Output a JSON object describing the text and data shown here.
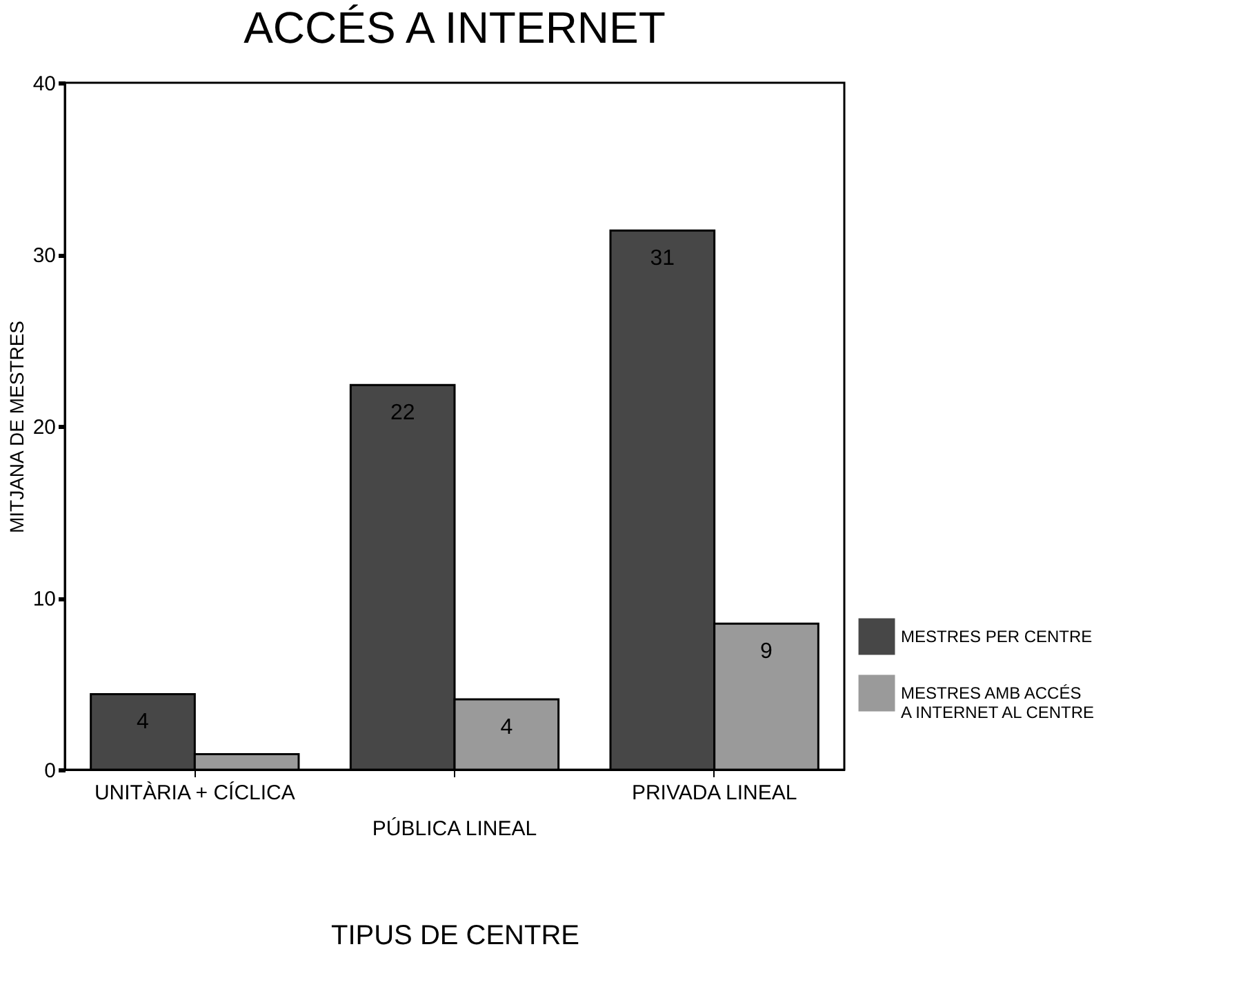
{
  "chart_data": {
    "type": "bar",
    "title": "ACCÉS A INTERNET",
    "xlabel": "TIPUS DE CENTRE",
    "ylabel": "MITJANA DE MESTRES",
    "categories": [
      "UNITÀRIA + CÍCLICA",
      "PÚBLICA LINEAL",
      "PRIVADA LINEAL"
    ],
    "series": [
      {
        "name": "MESTRES PER CENTRE",
        "color": "#474747",
        "values": [
          4.4,
          22.4,
          31.4
        ],
        "value_labels": [
          "4",
          "22",
          "31"
        ]
      },
      {
        "name": "MESTRES AMB ACCÉS\nA INTERNET AL CENTRE",
        "color": "#9a9a9a",
        "values": [
          0.9,
          4.1,
          8.5
        ],
        "value_labels": [
          null,
          "4",
          "9"
        ]
      }
    ],
    "ylim": [
      0,
      40
    ],
    "yticks": [
      0,
      10,
      20,
      30,
      40
    ],
    "grid": false,
    "legend": "bottom right"
  }
}
